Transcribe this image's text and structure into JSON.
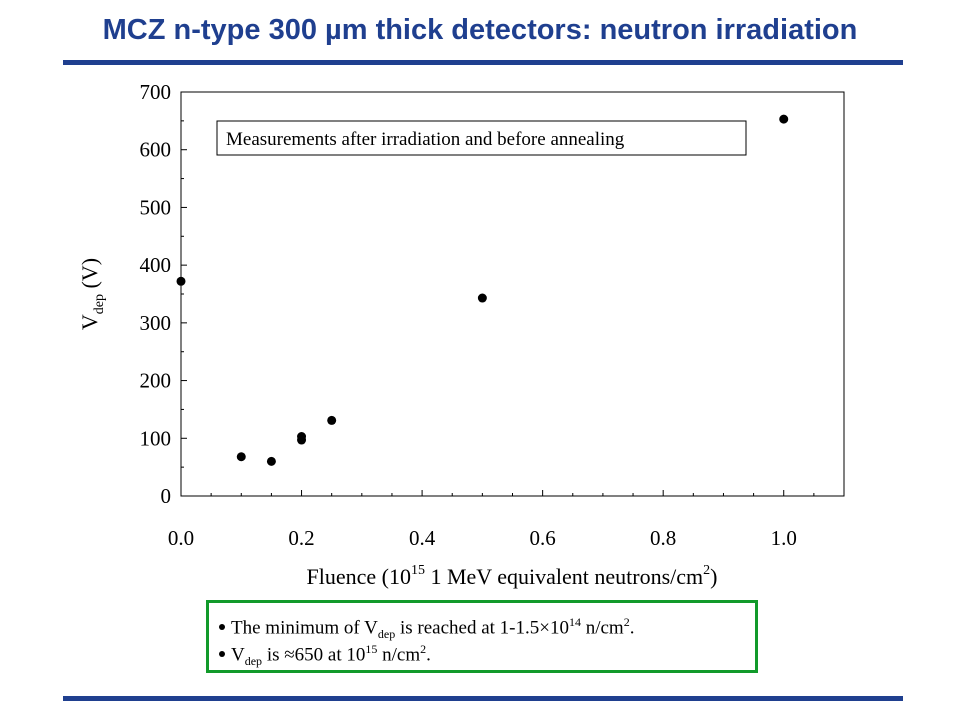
{
  "title": "MCZ n-type 300 µm thick detectors: neutron irradiation",
  "chart_data": {
    "type": "scatter",
    "xlabel_prefix": "Fluence (10",
    "xlabel_sup": "15",
    "xlabel_suffix": " 1 MeV equivalent neutrons/cm",
    "xlabel_sup2": "2",
    "xlabel_end": ")",
    "ylabel_main": "V",
    "ylabel_sub": "dep",
    "ylabel_unit": " (V)",
    "xlim": [
      0.0,
      1.1
    ],
    "ylim": [
      0,
      700
    ],
    "x_ticks": [
      "0.0",
      "0.2",
      "0.4",
      "0.6",
      "0.8",
      "1.0"
    ],
    "x_tick_values": [
      0.0,
      0.2,
      0.4,
      0.6,
      0.8,
      1.0
    ],
    "y_ticks": [
      "0",
      "100",
      "200",
      "300",
      "400",
      "500",
      "600",
      "700"
    ],
    "y_tick_values": [
      0,
      100,
      200,
      300,
      400,
      500,
      600,
      700
    ],
    "annotation": "Measurements after irradiation and before annealing",
    "points": [
      {
        "x": 0.0,
        "y": 372
      },
      {
        "x": 0.1,
        "y": 68
      },
      {
        "x": 0.15,
        "y": 60
      },
      {
        "x": 0.2,
        "y": 103
      },
      {
        "x": 0.2,
        "y": 97
      },
      {
        "x": 0.25,
        "y": 131
      },
      {
        "x": 0.5,
        "y": 343
      },
      {
        "x": 1.0,
        "y": 653
      }
    ],
    "grid": false,
    "marker_color": "#000000"
  },
  "notes": {
    "line1": {
      "a": "The minimum of V",
      "sub": "dep",
      "b": " is reached at 1-1.5×10",
      "sup": "14",
      "c": " n/cm",
      "sup2": "2",
      "d": "."
    },
    "line2": {
      "a": "V",
      "sub": "dep",
      "b": " is ≈650 at 10",
      "sup": "15",
      "c": " n/cm",
      "sup2": "2",
      "d": "."
    }
  },
  "colors": {
    "title": "#1f3f8f",
    "rule": "#1f3f8f",
    "notes_border": "#119a2a"
  }
}
